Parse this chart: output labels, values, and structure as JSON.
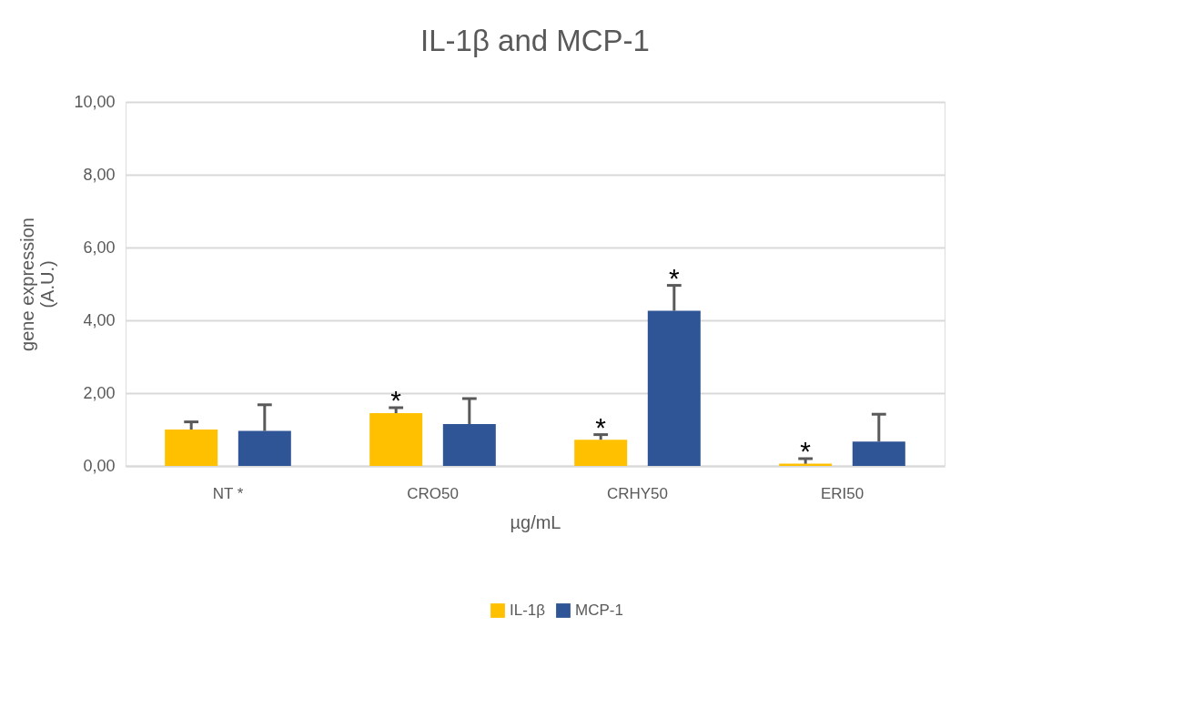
{
  "chart_data": {
    "type": "bar",
    "title": "IL-1β and MCP-1",
    "xlabel": "µg/mL",
    "ylabel": "gene expression\n(A.U.)",
    "categories": [
      "NT *",
      "CRO50",
      "CRHY50",
      "ERI50"
    ],
    "series": [
      {
        "name": "IL-1β",
        "color": "#ffc000",
        "values": [
          1.0,
          1.45,
          0.72,
          0.06
        ],
        "errors": [
          [
            1.0,
            1.21
          ],
          [
            1.45,
            1.6
          ],
          [
            0.72,
            0.86
          ],
          [
            0.06,
            0.2
          ]
        ],
        "value_labels": [
          null,
          "*",
          "*",
          "*"
        ]
      },
      {
        "name": "MCP-1",
        "color": "#2f5597",
        "values": [
          0.96,
          1.15,
          4.26,
          0.67
        ],
        "errors": [
          [
            0.96,
            1.68
          ],
          [
            1.15,
            1.85
          ],
          [
            4.26,
            4.96
          ],
          [
            0.67,
            1.42
          ]
        ],
        "value_labels": [
          null,
          null,
          "*",
          null
        ]
      }
    ],
    "ylim": [
      0,
      10
    ],
    "yticks": [
      {
        "value": 0,
        "label": "0,00"
      },
      {
        "value": 2,
        "label": "2,00"
      },
      {
        "value": 4,
        "label": "4,00"
      },
      {
        "value": 6,
        "label": "6,00"
      },
      {
        "value": 8,
        "label": "8,00"
      },
      {
        "value": 10,
        "label": "10,00"
      }
    ],
    "grid": "y",
    "legend": "bottom"
  }
}
